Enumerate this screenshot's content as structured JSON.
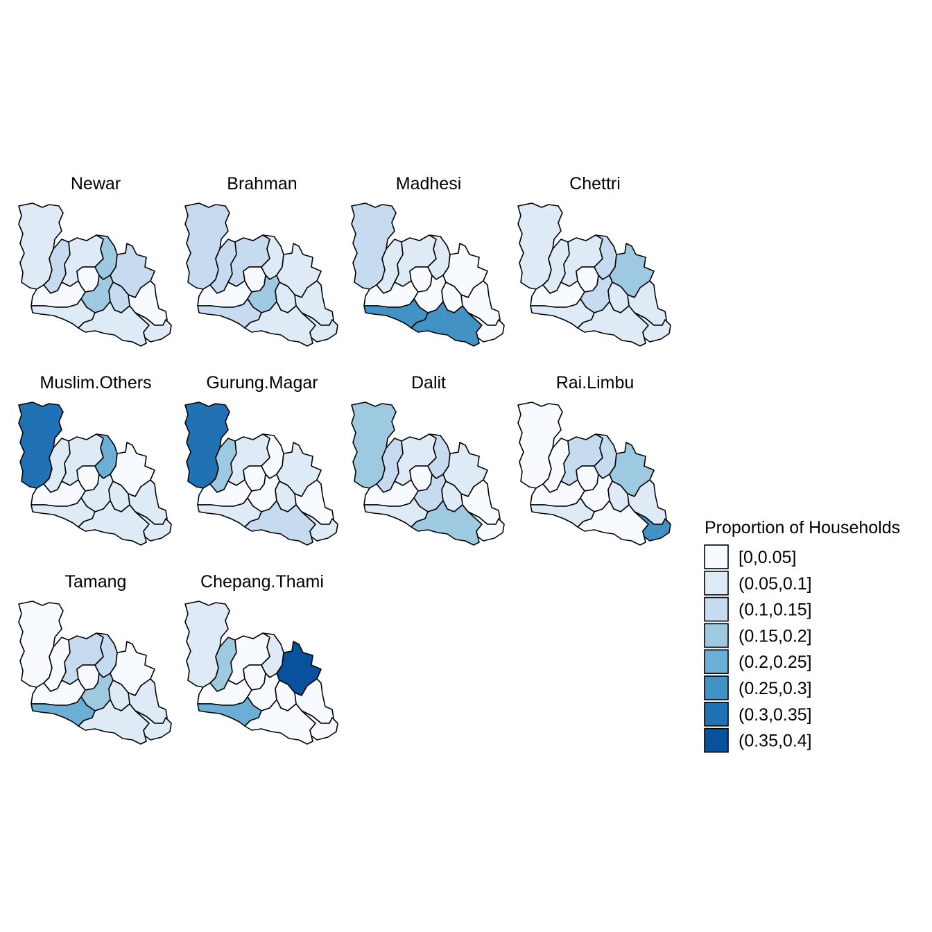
{
  "map_data": {
    "type": "choropleth_facets",
    "legend": {
      "title": "Proportion of Households",
      "placement": "right",
      "classes": [
        {
          "label": "[0,0.05]",
          "color": "#F7FBFF"
        },
        {
          "label": "(0.05,0.1]",
          "color": "#DEEBF7"
        },
        {
          "label": "(0.1,0.15]",
          "color": "#C6DBEF"
        },
        {
          "label": "(0.15,0.2]",
          "color": "#9ECAE1"
        },
        {
          "label": "(0.2,0.25]",
          "color": "#6BAED6"
        },
        {
          "label": "(0.25,0.3]",
          "color": "#4292C6"
        },
        {
          "label": "(0.3,0.35]",
          "color": "#2171B5"
        },
        {
          "label": "(0.35,0.4]",
          "color": "#08519C"
        }
      ]
    },
    "panels": [
      {
        "title": "Newar",
        "classes": [
          1,
          2,
          1,
          0,
          3,
          0,
          2,
          3,
          1,
          2,
          0,
          1,
          1
        ]
      },
      {
        "title": "Brahman",
        "classes": [
          2,
          2,
          2,
          0,
          1,
          0,
          1,
          3,
          2,
          1,
          1,
          1,
          1
        ]
      },
      {
        "title": "Madhesi",
        "classes": [
          2,
          1,
          1,
          0,
          1,
          0,
          0,
          0,
          5,
          0,
          0,
          5,
          0
        ]
      },
      {
        "title": "Chettri",
        "classes": [
          1,
          1,
          1,
          0,
          2,
          0,
          3,
          2,
          1,
          1,
          1,
          1,
          1
        ]
      },
      {
        "title": "Muslim.Others",
        "classes": [
          6,
          1,
          1,
          0,
          4,
          0,
          0,
          1,
          1,
          1,
          1,
          1,
          1
        ]
      },
      {
        "title": "Gurung.Magar",
        "classes": [
          6,
          3,
          1,
          0,
          0,
          0,
          1,
          0,
          1,
          1,
          0,
          2,
          1
        ]
      },
      {
        "title": "Dalit",
        "classes": [
          3,
          2,
          1,
          0,
          2,
          0,
          1,
          2,
          1,
          1,
          0,
          3,
          0
        ]
      },
      {
        "title": "Rai.Limbu",
        "classes": [
          0,
          0,
          2,
          0,
          2,
          0,
          3,
          0,
          1,
          1,
          1,
          0,
          5
        ]
      },
      {
        "title": "Tamang",
        "classes": [
          0,
          0,
          2,
          0,
          2,
          0,
          0,
          3,
          4,
          1,
          1,
          1,
          1
        ]
      },
      {
        "title": "Chepang.Thami",
        "classes": [
          1,
          3,
          0,
          0,
          1,
          0,
          7,
          0,
          4,
          0,
          0,
          0,
          0
        ]
      }
    ]
  }
}
